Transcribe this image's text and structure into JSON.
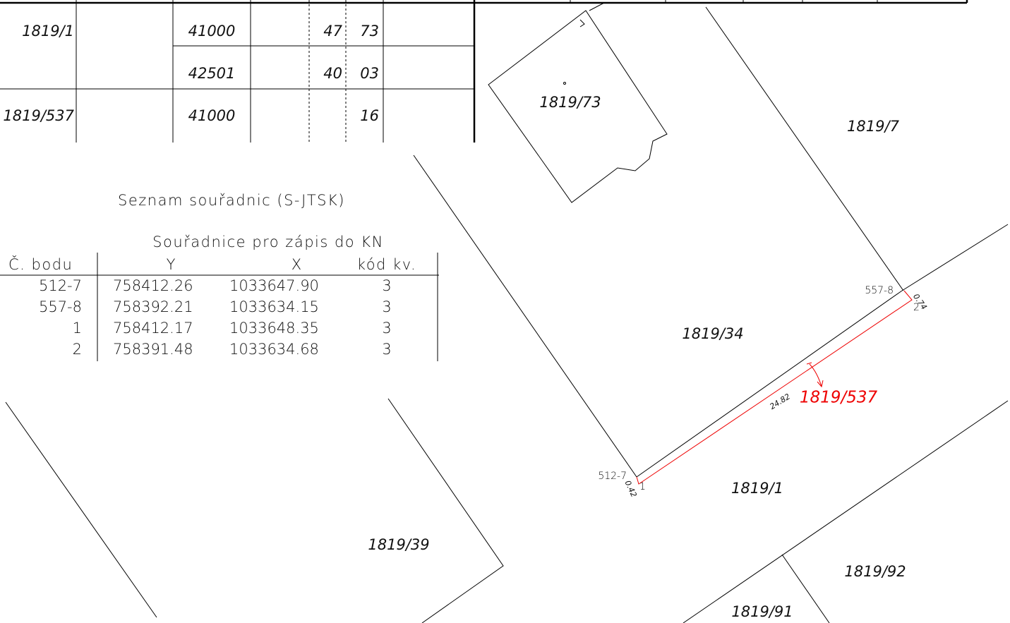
{
  "top_table": {
    "rows": [
      {
        "parcel": "1819/1",
        "code": "41000",
        "area_a": "47",
        "area_b": "73"
      },
      {
        "code": "42501",
        "area_a": "40",
        "area_b": "03"
      },
      {
        "parcel": "1819/537",
        "code": "41000",
        "area_b": "16"
      }
    ]
  },
  "coordinates": {
    "title": "Seznam souřadnic (S-JTSK)",
    "subtitle": "Souřadnice pro zápis do KN",
    "headers": [
      "Č. bodu",
      "Y",
      "X",
      "kód kv."
    ],
    "rows": [
      [
        "512-7",
        "758412.26",
        "1033647.90",
        "3"
      ],
      [
        "557-8",
        "758392.21",
        "1033634.15",
        "3"
      ],
      [
        "1",
        "758412.17",
        "1033648.35",
        "3"
      ],
      [
        "2",
        "758391.48",
        "1033634.68",
        "3"
      ]
    ]
  },
  "map": {
    "parcels": [
      "1819/73",
      "1819/7",
      "1819/34",
      "1819/1",
      "1819/39",
      "1819/92",
      "1819/91"
    ],
    "new_parcel": "1819/537",
    "points": [
      "557-8",
      "2",
      "512-7",
      "1"
    ],
    "measurements": [
      "0.74",
      "24.82",
      "0.42"
    ]
  }
}
